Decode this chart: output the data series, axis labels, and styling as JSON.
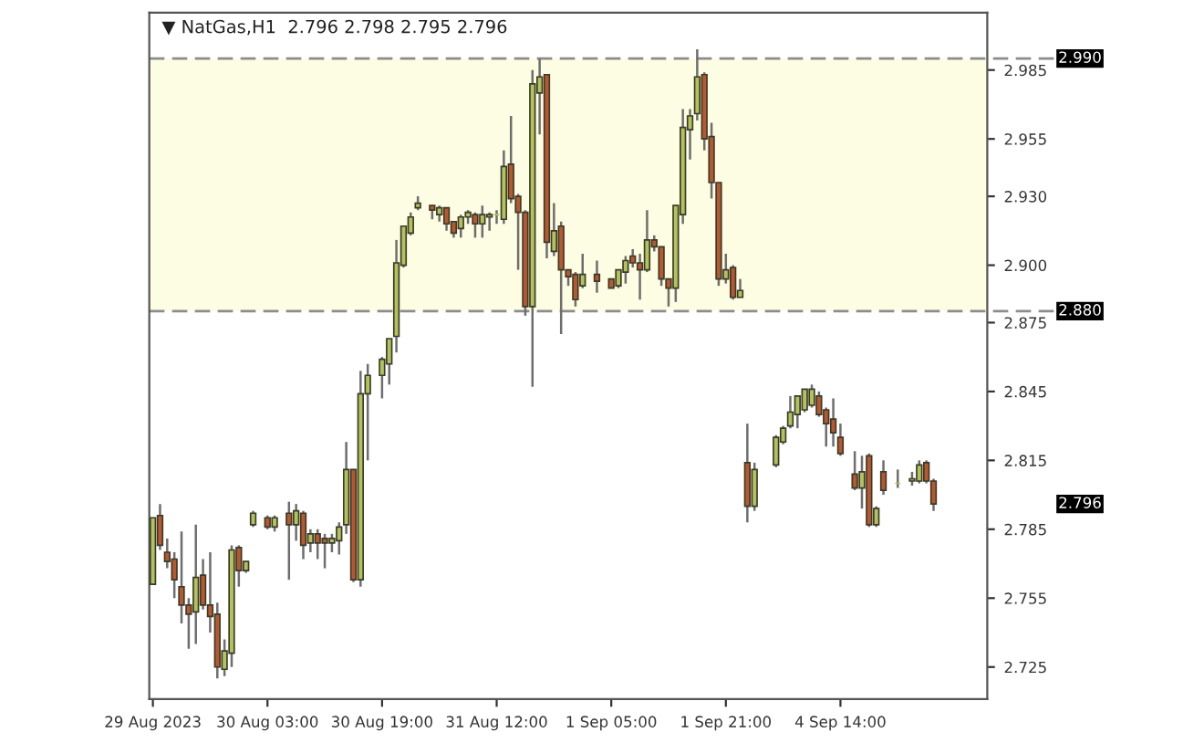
{
  "chart_data": {
    "type": "candlestick",
    "title": "▼ NatGas,H1  2.796 2.798 2.795 2.796",
    "categories": [
      "29 Aug 2023",
      null,
      null,
      null,
      null,
      null,
      null,
      null,
      null,
      null,
      null,
      null,
      null,
      null,
      null,
      null,
      "30 Aug 03:00",
      null,
      null,
      null,
      null,
      null,
      null,
      null,
      null,
      null,
      null,
      null,
      null,
      null,
      null,
      null,
      "30 Aug 19:00",
      null,
      null,
      null,
      null,
      null,
      null,
      null,
      null,
      null,
      null,
      null,
      null,
      null,
      null,
      null,
      "31 Aug 12:00",
      null,
      null,
      null,
      null,
      null,
      null,
      null,
      null,
      null,
      null,
      null,
      null,
      null,
      null,
      null,
      "1 Sep 05:00",
      null,
      null,
      null,
      null,
      null,
      null,
      null,
      null,
      null,
      null,
      null,
      null,
      null,
      null,
      null,
      "1 Sep 21:00",
      null,
      null,
      null,
      null,
      null,
      null,
      null,
      null,
      null,
      null,
      null,
      null,
      null,
      null,
      null,
      "4 Sep 14:00",
      null,
      null,
      null,
      null,
      null,
      null,
      null,
      null,
      null,
      null,
      null,
      null,
      null,
      null,
      null,
      null,
      null,
      null,
      null,
      null
    ],
    "ohlc": [
      [
        2.761,
        2.79,
        2.761,
        2.79
      ],
      [
        2.791,
        2.796,
        2.776,
        2.778
      ],
      [
        2.775,
        2.781,
        2.768,
        2.771
      ],
      [
        2.772,
        2.775,
        2.755,
        2.763
      ],
      [
        2.76,
        2.784,
        2.744,
        2.752
      ],
      [
        2.752,
        2.755,
        2.733,
        2.748
      ],
      [
        2.749,
        2.787,
        2.735,
        2.764
      ],
      [
        2.765,
        2.772,
        2.75,
        2.752
      ],
      [
        2.752,
        2.775,
        2.74,
        2.747
      ],
      [
        2.748,
        2.753,
        2.72,
        2.725
      ],
      [
        2.724,
        2.737,
        2.721,
        2.732
      ],
      [
        2.731,
        2.778,
        2.725,
        2.776
      ],
      [
        2.777,
        2.778,
        2.76,
        2.767
      ],
      [
        2.767,
        2.771,
        2.766,
        2.771
      ],
      [
        2.787,
        2.793,
        2.786,
        2.792
      ],
      null,
      [
        2.79,
        2.791,
        2.785,
        2.786
      ],
      [
        2.786,
        2.791,
        2.784,
        2.79
      ],
      null,
      [
        2.792,
        2.797,
        2.763,
        2.787
      ],
      [
        2.787,
        2.796,
        2.78,
        2.793
      ],
      [
        2.792,
        2.793,
        2.772,
        2.778
      ],
      [
        2.779,
        2.785,
        2.775,
        2.783
      ],
      [
        2.783,
        2.785,
        2.772,
        2.779
      ],
      [
        2.781,
        2.783,
        2.768,
        2.779
      ],
      [
        2.779,
        2.783,
        2.775,
        2.781
      ],
      [
        2.78,
        2.788,
        2.774,
        2.786
      ],
      [
        2.787,
        2.823,
        2.783,
        2.811
      ],
      [
        2.811,
        2.811,
        2.762,
        2.763
      ],
      [
        2.763,
        2.854,
        2.76,
        2.844
      ],
      [
        2.844,
        2.857,
        2.815,
        2.852
      ],
      null,
      [
        2.852,
        2.86,
        2.842,
        2.859
      ],
      [
        2.857,
        2.868,
        2.848,
        2.868
      ],
      [
        2.869,
        2.911,
        2.862,
        2.901
      ],
      [
        2.9,
        2.917,
        2.899,
        2.917
      ],
      [
        2.914,
        2.923,
        2.913,
        2.921
      ],
      [
        2.925,
        2.93,
        2.924,
        2.927
      ],
      null,
      [
        2.926,
        2.926,
        2.92,
        2.924
      ],
      [
        2.922,
        2.926,
        2.919,
        2.925
      ],
      [
        2.925,
        2.925,
        2.915,
        2.918
      ],
      [
        2.919,
        2.919,
        2.912,
        2.914
      ],
      [
        2.916,
        2.922,
        2.912,
        2.921
      ],
      [
        2.921,
        2.924,
        2.918,
        2.923
      ],
      [
        2.922,
        2.923,
        2.912,
        2.918
      ],
      [
        2.918,
        2.926,
        2.912,
        2.922
      ],
      [
        2.921,
        2.923,
        2.915,
        2.922
      ],
      [
        2.922,
        2.924,
        2.918,
        2.922
      ],
      [
        2.92,
        2.95,
        2.918,
        2.943
      ],
      [
        2.944,
        2.965,
        2.927,
        2.929
      ],
      [
        2.93,
        2.931,
        2.898,
        2.923
      ],
      [
        2.923,
        2.924,
        2.878,
        2.882
      ],
      [
        2.882,
        2.985,
        2.847,
        2.979
      ],
      [
        2.975,
        2.99,
        2.957,
        2.982
      ],
      [
        2.983,
        2.983,
        2.903,
        2.91
      ],
      [
        2.906,
        2.927,
        2.904,
        2.915
      ],
      [
        2.917,
        2.919,
        2.87,
        2.898
      ],
      [
        2.898,
        2.898,
        2.891,
        2.895
      ],
      [
        2.896,
        2.897,
        2.882,
        2.885
      ],
      [
        2.891,
        2.905,
        2.89,
        2.896
      ],
      null,
      [
        2.896,
        2.902,
        2.888,
        2.893
      ],
      null,
      [
        2.894,
        2.894,
        2.89,
        2.89
      ],
      [
        2.891,
        2.898,
        2.89,
        2.898
      ],
      [
        2.897,
        2.904,
        2.892,
        2.902
      ],
      [
        2.904,
        2.907,
        2.899,
        2.901
      ],
      [
        2.901,
        2.905,
        2.885,
        2.898
      ],
      [
        2.898,
        2.924,
        2.897,
        2.911
      ],
      [
        2.911,
        2.913,
        2.906,
        2.908
      ],
      [
        2.908,
        2.908,
        2.891,
        2.894
      ],
      [
        2.894,
        2.894,
        2.882,
        2.89
      ],
      [
        2.89,
        2.926,
        2.884,
        2.926
      ],
      [
        2.922,
        2.968,
        2.918,
        2.96
      ],
      [
        2.959,
        2.968,
        2.946,
        2.965
      ],
      [
        2.966,
        2.994,
        2.963,
        2.982
      ],
      [
        2.983,
        2.984,
        2.95,
        2.955
      ],
      [
        2.956,
        2.962,
        2.929,
        2.936
      ],
      [
        2.936,
        2.936,
        2.891,
        2.894
      ],
      [
        2.894,
        2.905,
        2.892,
        2.898
      ],
      [
        2.899,
        2.9,
        2.885,
        2.886
      ],
      [
        2.886,
        2.894,
        2.886,
        2.889
      ],
      [
        2.814,
        2.831,
        2.788,
        2.795
      ],
      [
        2.795,
        2.814,
        2.793,
        2.811
      ],
      null,
      null,
      [
        2.813,
        2.826,
        2.812,
        2.825
      ],
      [
        2.823,
        2.83,
        2.822,
        2.829
      ],
      [
        2.83,
        2.843,
        2.829,
        2.836
      ],
      [
        2.835,
        2.843,
        2.829,
        2.843
      ],
      [
        2.837,
        2.846,
        2.836,
        2.846
      ],
      [
        2.839,
        2.848,
        2.838,
        2.846
      ],
      [
        2.843,
        2.845,
        2.834,
        2.835
      ],
      [
        2.837,
        2.838,
        2.821,
        2.831
      ],
      [
        2.833,
        2.842,
        2.821,
        2.827
      ],
      [
        2.825,
        2.831,
        2.817,
        2.818
      ],
      null,
      [
        2.809,
        2.819,
        2.802,
        2.803
      ],
      [
        2.803,
        2.817,
        2.794,
        2.81
      ],
      [
        2.817,
        2.818,
        2.786,
        2.787
      ],
      [
        2.787,
        2.795,
        2.786,
        2.794
      ],
      [
        2.81,
        2.815,
        2.8,
        2.802
      ],
      null,
      [
        2.805,
        2.811,
        2.803,
        2.805
      ],
      null,
      [
        2.806,
        2.81,
        2.804,
        2.807
      ],
      [
        2.806,
        2.815,
        2.805,
        2.813
      ],
      [
        2.814,
        2.815,
        2.805,
        2.806
      ],
      [
        2.806,
        2.807,
        2.793,
        2.796
      ],
      null,
      null,
      null,
      null,
      null,
      null,
      null
    ],
    "colors": [
      "#b3c25a",
      "#b8582e",
      "#b8582e",
      "#b8582e",
      "#b8582e",
      "#b8582e",
      "#b3c25a",
      "#b8582e",
      "#b8582e",
      "#b8582e",
      "#b3c25a",
      "#b3c25a",
      "#b8582e",
      "#b3c25a",
      "#b3c25a",
      null,
      "#b8582e",
      "#b3c25a",
      null,
      "#b8582e",
      "#b3c25a",
      "#b8582e",
      "#b3c25a",
      "#b8582e",
      "#b8582e",
      "#b3c25a",
      "#b3c25a",
      "#b3c25a",
      "#b8582e",
      "#b3c25a",
      "#b3c25a",
      null,
      "#b3c25a",
      "#b3c25a",
      "#b3c25a",
      "#b3c25a",
      "#b3c25a",
      "#b3c25a",
      null,
      "#b8582e",
      "#b3c25a",
      "#b8582e",
      "#b8582e",
      "#b3c25a",
      "#b3c25a",
      "#b8582e",
      "#b3c25a",
      "#b3c25a",
      "#b3c25a",
      "#b3c25a",
      "#b8582e",
      "#b8582e",
      "#b8582e",
      "#b3c25a",
      "#b3c25a",
      "#b8582e",
      "#b3c25a",
      "#b8582e",
      "#b8582e",
      "#b8582e",
      "#b3c25a",
      null,
      "#b8582e",
      null,
      "#b8582e",
      "#b3c25a",
      "#b3c25a",
      "#b8582e",
      "#b8582e",
      "#b3c25a",
      "#b8582e",
      "#b8582e",
      "#b8582e",
      "#b3c25a",
      "#b3c25a",
      "#b3c25a",
      "#b3c25a",
      "#b8582e",
      "#b8582e",
      "#b8582e",
      "#b3c25a",
      "#b8582e",
      "#b3c25a",
      "#b8582e",
      "#b3c25a",
      null,
      null,
      "#b3c25a",
      "#b3c25a",
      "#b3c25a",
      "#b3c25a",
      "#b3c25a",
      "#b3c25a",
      "#b8582e",
      "#b8582e",
      "#b8582e",
      "#b8582e",
      null,
      "#b8582e",
      "#b3c25a",
      "#b8582e",
      "#b3c25a",
      "#b8582e",
      null,
      "#b3c25a",
      null,
      "#b3c25a",
      "#b3c25a",
      "#b8582e",
      "#b8582e",
      null,
      null,
      null,
      null,
      null,
      null,
      null
    ],
    "ylim": [
      2.711,
      3.01
    ],
    "yticks": [
      2.725,
      2.755,
      2.785,
      2.815,
      2.845,
      2.875,
      {
        "value": 2.9,
        "label": "2.900"
      },
      {
        "value": 2.93,
        "label": "2.930"
      },
      2.955,
      2.985
    ],
    "ref_lines": [
      {
        "axis": "y",
        "value": 2.99,
        "label": "2.990",
        "line_style": "dashed",
        "color": "#8c8c8c"
      },
      {
        "axis": "y",
        "value": 2.88,
        "label": "2.880",
        "line_style": "dashed",
        "color": "#8c8c8c"
      }
    ],
    "annotations": [
      "2.796"
    ],
    "bands": [
      {
        "axis": "y",
        "from": 2.88,
        "to": 2.99,
        "color": "#fdfde3"
      }
    ]
  }
}
